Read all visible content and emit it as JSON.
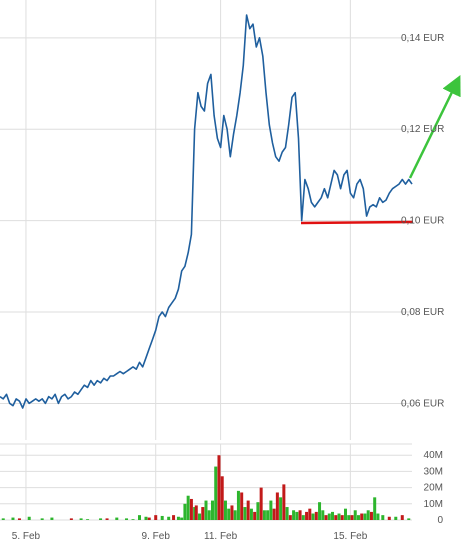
{
  "colors": {
    "line": "#1f5f9e",
    "grid": "#dedede",
    "vol_up": "#2db52d",
    "vol_down": "#c21a1a",
    "support": "#e01010",
    "trend": "#3cc43c"
  },
  "chart_data": [
    {
      "type": "line",
      "title": "",
      "xlabel": "",
      "ylabel": "",
      "ylim": [
        0.052,
        0.145
      ],
      "x_ticks": [
        "5. Feb",
        "9. Feb",
        "11. Feb",
        "15. Feb"
      ],
      "y_ticks": [
        "0,06 EUR",
        "0,08 EUR",
        "0,10 EUR",
        "0,12 EUR",
        "0,14 EUR"
      ],
      "x_range": [
        3.7,
        16.4
      ],
      "grid": true,
      "series": [
        {
          "x": [
            3.7,
            3.8,
            3.9,
            4.0,
            4.1,
            4.2,
            4.3,
            4.4,
            4.5,
            4.6,
            4.7,
            4.8,
            4.9,
            5.0,
            5.1,
            5.2,
            5.3,
            5.4,
            5.5,
            5.6,
            5.7,
            5.8,
            5.9,
            6.0,
            6.1,
            6.2,
            6.3,
            6.4,
            6.5,
            6.6,
            6.7,
            6.8,
            6.9,
            7.0,
            7.1,
            7.2,
            7.3,
            7.4,
            7.5,
            7.6,
            7.7,
            7.8,
            7.9,
            8.0,
            8.1,
            8.2,
            8.3,
            8.4,
            8.5,
            8.6,
            8.7,
            8.8,
            8.9,
            9.0,
            9.1,
            9.2,
            9.3,
            9.4,
            9.5,
            9.6,
            9.7,
            9.8,
            9.9,
            10.0,
            10.1,
            10.15,
            10.2,
            10.3,
            10.4,
            10.5,
            10.6,
            10.7,
            10.8,
            10.9,
            11.0,
            11.1,
            11.2,
            11.3,
            11.4,
            11.5,
            11.6,
            11.7,
            11.8,
            11.9,
            12.0,
            12.1,
            12.2,
            12.3,
            12.4,
            12.5,
            12.6,
            12.7,
            12.8,
            12.9,
            13.0,
            13.1,
            13.2,
            13.3,
            13.4,
            13.5,
            13.6,
            13.7,
            13.8,
            13.9,
            14.0,
            14.1,
            14.2,
            14.3,
            14.4,
            14.5,
            14.6,
            14.7,
            14.8,
            14.9,
            15.0,
            15.1,
            15.2,
            15.3,
            15.4,
            15.5,
            15.6,
            15.7,
            15.8,
            15.9,
            16.0,
            16.1,
            16.2,
            16.3,
            16.4
          ],
          "values": [
            0.0615,
            0.061,
            0.062,
            0.06,
            0.0595,
            0.061,
            0.0605,
            0.059,
            0.061,
            0.06,
            0.0605,
            0.061,
            0.0605,
            0.061,
            0.06,
            0.0615,
            0.061,
            0.062,
            0.06,
            0.0615,
            0.062,
            0.061,
            0.0615,
            0.0625,
            0.062,
            0.063,
            0.064,
            0.0635,
            0.065,
            0.064,
            0.065,
            0.0645,
            0.0655,
            0.065,
            0.066,
            0.066,
            0.0665,
            0.067,
            0.0665,
            0.067,
            0.0675,
            0.068,
            0.0675,
            0.069,
            0.068,
            0.07,
            0.072,
            0.074,
            0.076,
            0.079,
            0.08,
            0.079,
            0.081,
            0.082,
            0.083,
            0.085,
            0.089,
            0.09,
            0.093,
            0.097,
            0.12,
            0.128,
            0.125,
            0.124,
            0.13,
            0.131,
            0.132,
            0.123,
            0.118,
            0.116,
            0.123,
            0.12,
            0.114,
            0.119,
            0.123,
            0.128,
            0.134,
            0.145,
            0.142,
            0.143,
            0.138,
            0.14,
            0.136,
            0.128,
            0.121,
            0.117,
            0.114,
            0.113,
            0.115,
            0.116,
            0.121,
            0.127,
            0.128,
            0.118,
            0.1,
            0.109,
            0.107,
            0.104,
            0.103,
            0.104,
            0.105,
            0.107,
            0.105,
            0.108,
            0.111,
            0.11,
            0.107,
            0.11,
            0.111,
            0.106,
            0.105,
            0.108,
            0.109,
            0.107,
            0.101,
            0.103,
            0.1035,
            0.103,
            0.105,
            0.104,
            0.1045,
            0.106,
            0.107,
            0.1075,
            0.108,
            0.109,
            0.108,
            0.109,
            0.108
          ]
        }
      ]
    },
    {
      "type": "bar",
      "title": "",
      "ylim": [
        0,
        42
      ],
      "y_ticks": [
        "0",
        "10M",
        "20M",
        "30M",
        "40M"
      ],
      "x_ticks": [
        "5. Feb",
        "9. Feb",
        "11. Feb",
        "15. Feb"
      ],
      "series": [
        {
          "x": [
            3.8,
            4.1,
            4.3,
            4.6,
            5.0,
            5.3,
            5.9,
            6.2,
            6.4,
            6.8,
            7.0,
            7.3,
            7.6,
            7.8,
            8.0,
            8.2,
            8.3,
            8.5,
            8.7,
            8.9,
            9.05,
            9.2,
            9.3,
            9.4,
            9.5,
            9.6,
            9.7,
            9.75,
            9.85,
            9.95,
            10.05,
            10.15,
            10.25,
            10.35,
            10.45,
            10.55,
            10.65,
            10.75,
            10.85,
            10.95,
            11.05,
            11.15,
            11.25,
            11.35,
            11.45,
            11.55,
            11.65,
            11.75,
            11.85,
            11.95,
            12.05,
            12.15,
            12.25,
            12.35,
            12.45,
            12.55,
            12.65,
            12.75,
            12.85,
            12.95,
            13.05,
            13.15,
            13.25,
            13.35,
            13.45,
            13.55,
            13.65,
            13.75,
            13.85,
            13.95,
            14.05,
            14.15,
            14.25,
            14.35,
            14.45,
            14.55,
            14.65,
            14.75,
            14.85,
            14.95,
            15.05,
            15.15,
            15.25,
            15.35,
            15.5,
            15.7,
            15.9,
            16.1,
            16.3
          ],
          "values": [
            1,
            1.5,
            1,
            2,
            1,
            1.5,
            1,
            1,
            0.5,
            1,
            1,
            1.5,
            1,
            0.5,
            3,
            2,
            1.5,
            3,
            2.5,
            2,
            3,
            2,
            1.5,
            10,
            15,
            13,
            8,
            9,
            4,
            8,
            12,
            6,
            12,
            33,
            40,
            27,
            12,
            7,
            9,
            6,
            18,
            17,
            8,
            12,
            7,
            5,
            11,
            20,
            6,
            6,
            12,
            7,
            17,
            14,
            22,
            8,
            3,
            6,
            5,
            6,
            3,
            5,
            7,
            4,
            5,
            11,
            6,
            3,
            4,
            5,
            3,
            4,
            3,
            7,
            3,
            3,
            6,
            3,
            4,
            4,
            6,
            5,
            14,
            4,
            3,
            2,
            2,
            3,
            1
          ],
          "direction": [
            "up",
            "up",
            "down",
            "up",
            "up",
            "up",
            "down",
            "up",
            "up",
            "up",
            "down",
            "up",
            "up",
            "up",
            "up",
            "up",
            "down",
            "down",
            "up",
            "up",
            "down",
            "up",
            "up",
            "up",
            "up",
            "down",
            "up",
            "down",
            "up",
            "down",
            "up",
            "up",
            "up",
            "up",
            "down",
            "down",
            "up",
            "up",
            "down",
            "up",
            "up",
            "down",
            "up",
            "down",
            "up",
            "down",
            "up",
            "down",
            "up",
            "up",
            "up",
            "down",
            "down",
            "up",
            "down",
            "up",
            "down",
            "up",
            "up",
            "down",
            "up",
            "down",
            "down",
            "up",
            "down",
            "up",
            "up",
            "down",
            "up",
            "up",
            "down",
            "up",
            "down",
            "up",
            "up",
            "down",
            "up",
            "up",
            "down",
            "up",
            "up",
            "down",
            "up",
            "up",
            "up",
            "down",
            "up",
            "down",
            "up"
          ]
        }
      ]
    }
  ]
}
